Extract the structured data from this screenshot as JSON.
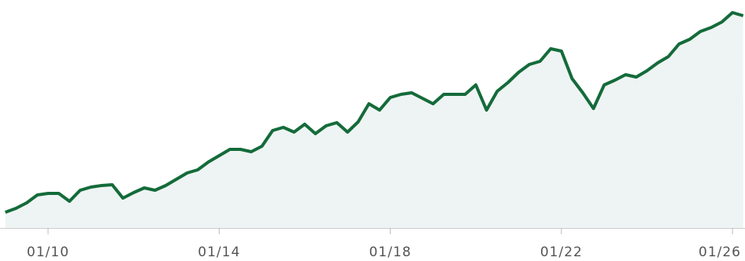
{
  "chart_data": {
    "type": "area",
    "categories": [
      null,
      null,
      null,
      null,
      "01/10",
      null,
      null,
      null,
      null,
      null,
      null,
      null,
      null,
      null,
      null,
      null,
      null,
      null,
      null,
      null,
      "01/14",
      null,
      null,
      null,
      null,
      null,
      null,
      null,
      null,
      null,
      null,
      null,
      null,
      null,
      null,
      null,
      "01/18",
      null,
      null,
      null,
      null,
      null,
      null,
      null,
      null,
      null,
      null,
      null,
      null,
      null,
      null,
      null,
      "01/22",
      null,
      null,
      null,
      null,
      null,
      null,
      null,
      null,
      null,
      null,
      null,
      null,
      null,
      null,
      null,
      "01/26",
      null
    ],
    "values": [
      20,
      25,
      32,
      42,
      44,
      44,
      34,
      48,
      52,
      54,
      55,
      38,
      45,
      51,
      48,
      54,
      62,
      70,
      74,
      84,
      92,
      100,
      100,
      97,
      104,
      124,
      128,
      122,
      132,
      120,
      130,
      134,
      122,
      135,
      158,
      150,
      166,
      170,
      172,
      165,
      158,
      170,
      170,
      170,
      182,
      150,
      174,
      185,
      198,
      208,
      212,
      228,
      225,
      190,
      172,
      152,
      182,
      188,
      195,
      192,
      200,
      210,
      218,
      234,
      240,
      250,
      255,
      262,
      274,
      270
    ],
    "color": "#146b3a",
    "fill": "#eef4f3",
    "ylim": [
      0,
      290
    ]
  }
}
